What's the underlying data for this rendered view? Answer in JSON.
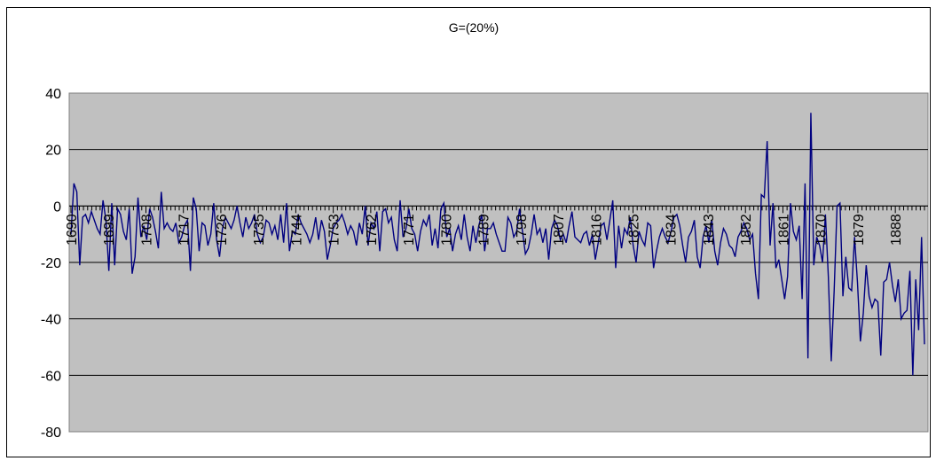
{
  "chart_data": {
    "type": "line",
    "title": "G=(20%)",
    "xlabel": "",
    "ylabel": "",
    "ylim": [
      -80,
      40
    ],
    "yticks": [
      40,
      20,
      0,
      -20,
      -40,
      -60,
      -80
    ],
    "grid": true,
    "legend": "none",
    "x_start": 1690,
    "x_end": 1895,
    "xtick_labels": [
      "1690",
      "1699",
      "1708",
      "1717",
      "1726",
      "1735",
      "1744",
      "1753",
      "1762",
      "1771",
      "1780",
      "1789",
      "1798",
      "1807",
      "1816",
      "1825",
      "1834",
      "1843",
      "1852",
      "1861",
      "1870",
      "1879",
      "1888"
    ],
    "colors": {
      "series": "#000080",
      "plot_bg": "#c0c0c0",
      "grid": "#000000"
    },
    "series": [
      {
        "values": [
          -10,
          8,
          5,
          -21,
          -4,
          -3,
          -6,
          -2,
          -5,
          -8,
          -10,
          2,
          -5,
          -23,
          1,
          -21,
          -1,
          -3,
          -9,
          -12,
          -1,
          -24,
          -18,
          3,
          -11,
          -7,
          -12,
          -1,
          -4,
          -9,
          -15,
          5,
          -8,
          -6,
          -8,
          -9,
          -6,
          -13,
          -11,
          -7,
          -5,
          -23,
          3,
          -1,
          -16,
          -6,
          -7,
          -14,
          -10,
          1,
          -12,
          -18,
          -8,
          -4,
          -6,
          -8,
          -5,
          0,
          -6,
          -11,
          -4,
          -8,
          -6,
          -3,
          -10,
          -13,
          -11,
          -5,
          -6,
          -10,
          -7,
          -12,
          -3,
          -13,
          1,
          -16,
          -9,
          -10,
          -3,
          -6,
          -8,
          -10,
          -13,
          -10,
          -4,
          -12,
          -5,
          -9,
          -19,
          -14,
          -8,
          -6,
          -5,
          -3,
          -6,
          -10,
          -7,
          -9,
          -14,
          -6,
          -10,
          0,
          -14,
          -6,
          -8,
          -2,
          -16,
          -2,
          -1,
          -6,
          -4,
          -12,
          -16,
          2,
          -11,
          -8,
          -1,
          -8,
          -10,
          -16,
          -9,
          -5,
          -7,
          -3,
          -14,
          -8,
          -15,
          -1,
          1,
          -11,
          -8,
          -16,
          -10,
          -7,
          -12,
          -3,
          -11,
          -16,
          -7,
          -13,
          -7,
          -3,
          -16,
          -8,
          -8,
          -6,
          -10,
          -13,
          -16,
          -16,
          -4,
          -6,
          -11,
          -9,
          -1,
          -9,
          -17,
          -15,
          -10,
          -3,
          -10,
          -8,
          -13,
          -8,
          -19,
          -8,
          -5,
          -7,
          -12,
          -10,
          -13,
          -7,
          -2,
          -11,
          -12,
          -13,
          -10,
          -9,
          -14,
          -10,
          -19,
          -13,
          -7,
          -6,
          -12,
          -5,
          2,
          -22,
          -7,
          -15,
          -8,
          -10,
          -4,
          -14,
          -20,
          -9,
          -12,
          -14,
          -6,
          -7,
          -22,
          -16,
          -11,
          -8,
          -11,
          -13,
          -9,
          -4,
          -3,
          -7,
          -14,
          -20,
          -11,
          -9,
          -5,
          -18,
          -22,
          -11,
          -7,
          -13,
          -5,
          -16,
          -21,
          -13,
          -8,
          -10,
          -14,
          -15,
          -18,
          -11,
          -9,
          -6,
          -8,
          -12,
          -10,
          -24,
          -33,
          4,
          3,
          23,
          -14,
          1,
          -22,
          -19,
          -26,
          -33,
          -25,
          1,
          -9,
          -12,
          -7,
          -33,
          8,
          -54,
          33,
          -21,
          -11,
          -14,
          -20,
          -3,
          -25,
          -55,
          -30,
          0,
          1,
          -32,
          -18,
          -29,
          -30,
          -11,
          -27,
          -48,
          -38,
          -21,
          -32,
          -36,
          -33,
          -34,
          -53,
          -27,
          -26,
          -20,
          -28,
          -34,
          -26,
          -40,
          -38,
          -37,
          -23,
          -60,
          -26,
          -44,
          -11,
          -49
        ]
      }
    ]
  }
}
